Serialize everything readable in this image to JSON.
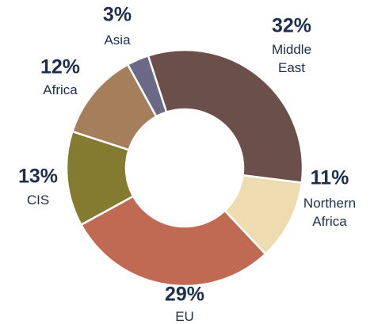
{
  "chart_data": {
    "type": "donut",
    "categories": [
      "Middle East",
      "Northern Africa",
      "EU",
      "CIS",
      "Africa",
      "Asia"
    ],
    "values": [
      32,
      11,
      29,
      13,
      12,
      3
    ],
    "value_labels": [
      "32%",
      "11%",
      "29%",
      "13%",
      "12%",
      "3%"
    ],
    "colors": [
      "#6b4f4b",
      "#ecdcb0",
      "#c06a53",
      "#847a30",
      "#a57e5c",
      "#6a6987"
    ]
  }
}
